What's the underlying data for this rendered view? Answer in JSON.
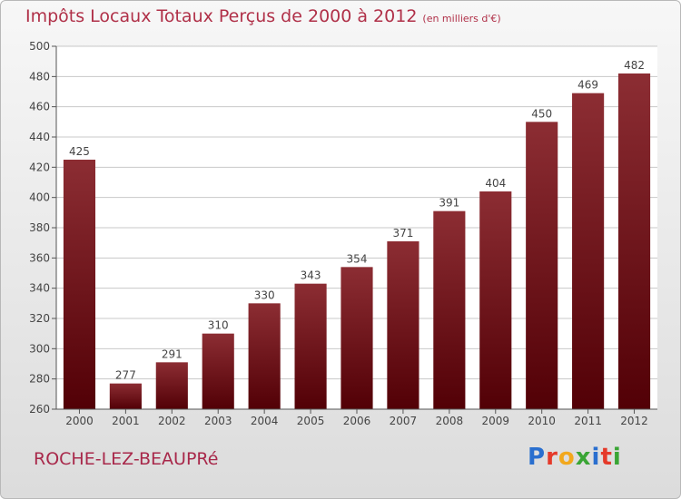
{
  "header": {
    "title": "Impôts Locaux Totaux Perçus de 2000 à 2012",
    "subtitle": "(en milliers d'€)"
  },
  "footer": {
    "commune": "ROCHE-LEZ-BEAUPRé"
  },
  "logo": {
    "letters": [
      "P",
      "r",
      "o",
      "x",
      "i",
      "t",
      "i"
    ],
    "colors": [
      "#2a6fcf",
      "#e53a2a",
      "#f2a81d",
      "#3aa535",
      "#2a6fcf",
      "#e53a2a",
      "#3aa535"
    ]
  },
  "chart_data": {
    "type": "bar",
    "title": "Impôts Locaux Totaux Perçus de 2000 à 2012",
    "ylabel": "en milliers d'€",
    "xlabel": "",
    "categories": [
      "2000",
      "2001",
      "2002",
      "2003",
      "2004",
      "2005",
      "2006",
      "2007",
      "2008",
      "2009",
      "2010",
      "2011",
      "2012"
    ],
    "values": [
      425,
      277,
      291,
      310,
      330,
      343,
      354,
      371,
      391,
      404,
      450,
      469,
      482
    ],
    "ylim": [
      260,
      500
    ],
    "yticks": [
      260,
      280,
      300,
      320,
      340,
      360,
      380,
      400,
      420,
      440,
      460,
      480,
      500
    ],
    "grid": true,
    "bar_color_top": "#8c2d33",
    "bar_color_bottom": "#520006"
  }
}
